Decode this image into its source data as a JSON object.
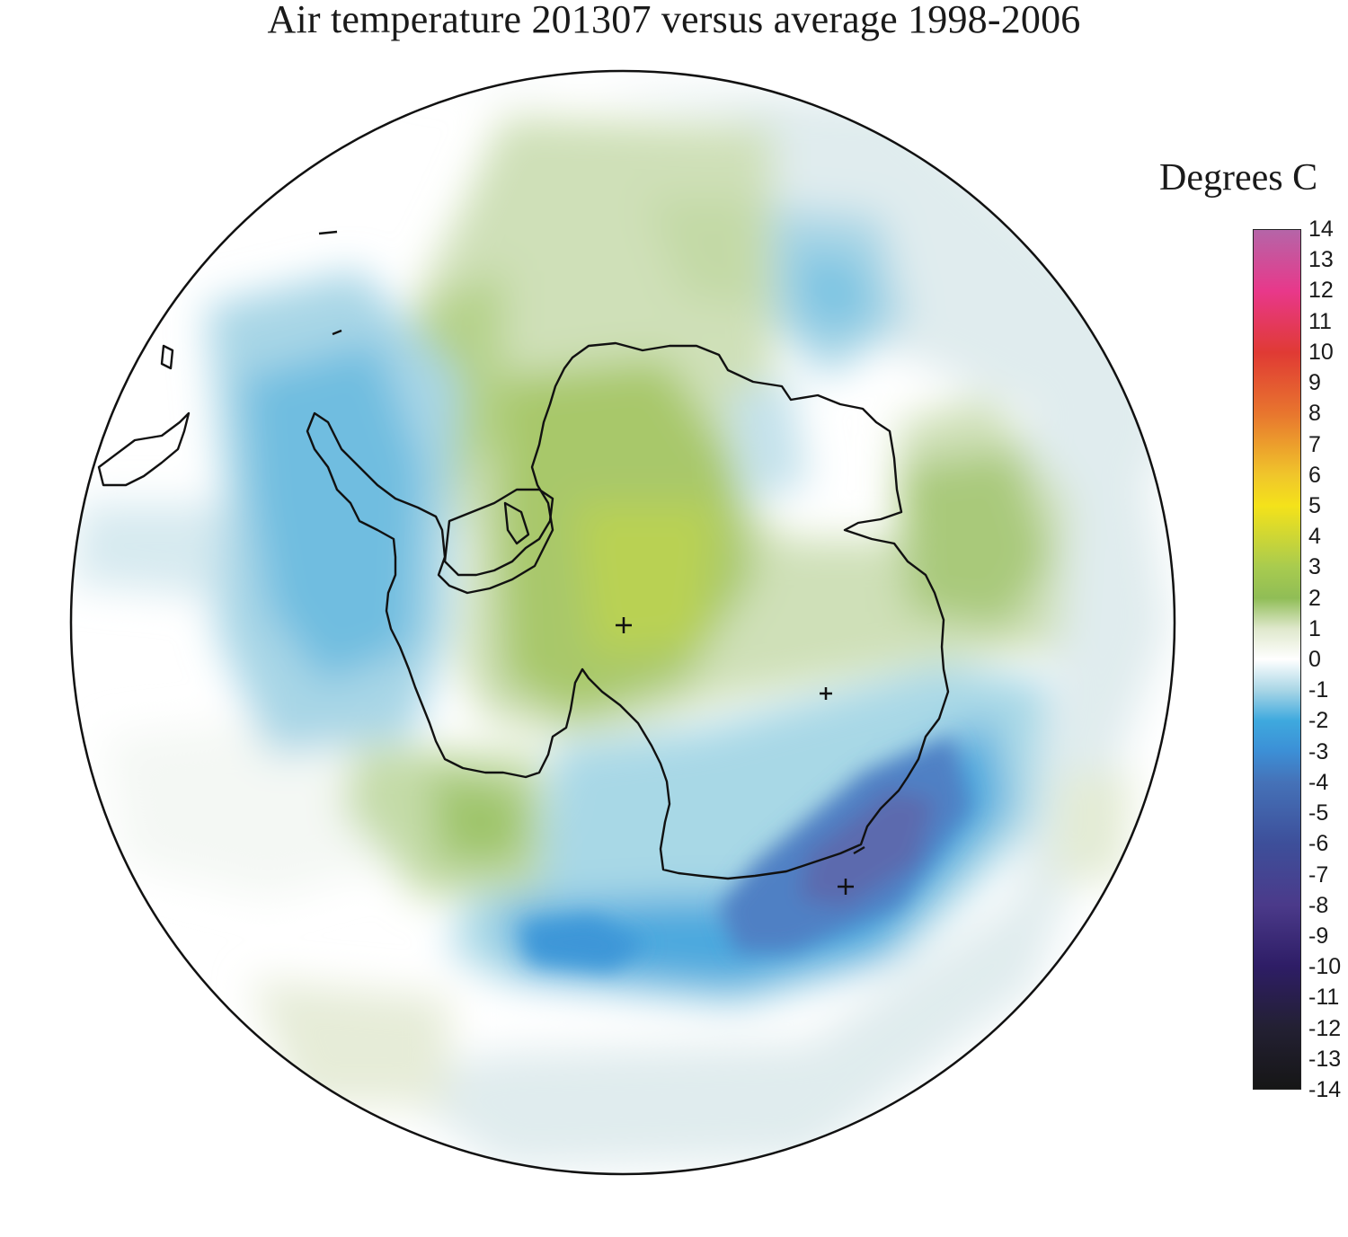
{
  "title": "Air temperature 201307 versus average 1998-2006",
  "legend": {
    "units_label": "Degrees C",
    "min": -14,
    "max": 14,
    "ticks": [
      "14",
      "13",
      "12",
      "11",
      "10",
      "9",
      "8",
      "7",
      "6",
      "5",
      "4",
      "3",
      "2",
      "1",
      "0",
      "-1",
      "-2",
      "-3",
      "-4",
      "-5",
      "-6",
      "-7",
      "-8",
      "-9",
      "-10",
      "-11",
      "-12",
      "-13",
      "-14"
    ],
    "colors": {
      "14": "#b565a8",
      "12": "#e8388a",
      "10": "#e03a34",
      "8": "#e8762e",
      "6": "#f0c62b",
      "5": "#f4e21a",
      "3": "#a8cb4f",
      "2": "#90bd56",
      "1": "#dfe8cc",
      "0": "#ffffff",
      "-1": "#a9d6e6",
      "-2": "#3ea9de",
      "-3": "#3c8fd6",
      "-4": "#4572b8",
      "-6": "#3d4f9a",
      "-8": "#4b3a8a",
      "-10": "#2e1d66",
      "-12": "#232033",
      "-14": "#161616"
    }
  },
  "map": {
    "projection": "south polar stereographic",
    "region": "Antarctica",
    "markers": [
      "plus",
      "plus",
      "plus"
    ]
  }
}
